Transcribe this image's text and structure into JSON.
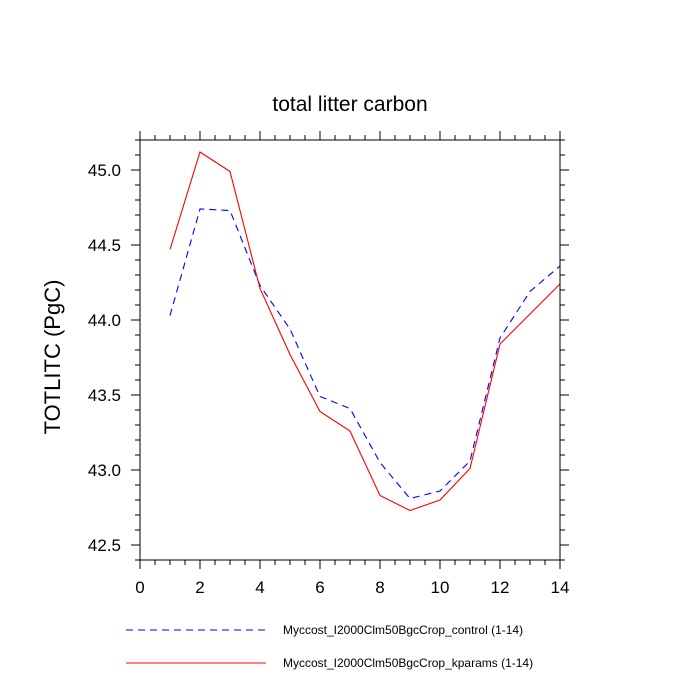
{
  "chart_data": {
    "type": "line",
    "title": "total litter carbon",
    "xlabel": "",
    "ylabel": "TOTLITC  (PgC)",
    "xlim": [
      0,
      14
    ],
    "ylim": [
      42.4,
      45.2
    ],
    "x_ticks": [
      0,
      2,
      4,
      6,
      8,
      10,
      12,
      14
    ],
    "y_ticks": [
      42.5,
      43.0,
      43.5,
      44.0,
      44.5,
      45.0
    ],
    "x_tick_labels": [
      "0",
      "2",
      "4",
      "6",
      "8",
      "10",
      "12",
      "14"
    ],
    "y_tick_labels": [
      "42.5",
      "43.0",
      "43.5",
      "44.0",
      "44.5",
      "45.0"
    ],
    "grid": false,
    "legend_position": "bottom",
    "x": [
      1,
      2,
      3,
      4,
      5,
      6,
      7,
      8,
      9,
      10,
      11,
      12,
      13,
      14
    ],
    "series": [
      {
        "name": "Myccost_I2000Clm50BgcCrop_control (1-14)",
        "color": "#0000ff",
        "style": "dashed",
        "values": [
          44.03,
          44.74,
          44.73,
          44.23,
          43.94,
          43.49,
          43.41,
          43.05,
          42.81,
          42.86,
          43.06,
          43.88,
          44.19,
          44.36
        ]
      },
      {
        "name": "Myccost_I2000Clm50BgcCrop_kparams (1-14)",
        "color": "#ff0000",
        "style": "solid",
        "values": [
          44.47,
          45.12,
          44.99,
          44.21,
          43.77,
          43.39,
          43.26,
          42.83,
          42.73,
          42.8,
          43.01,
          43.84,
          44.04,
          44.24
        ]
      }
    ]
  }
}
